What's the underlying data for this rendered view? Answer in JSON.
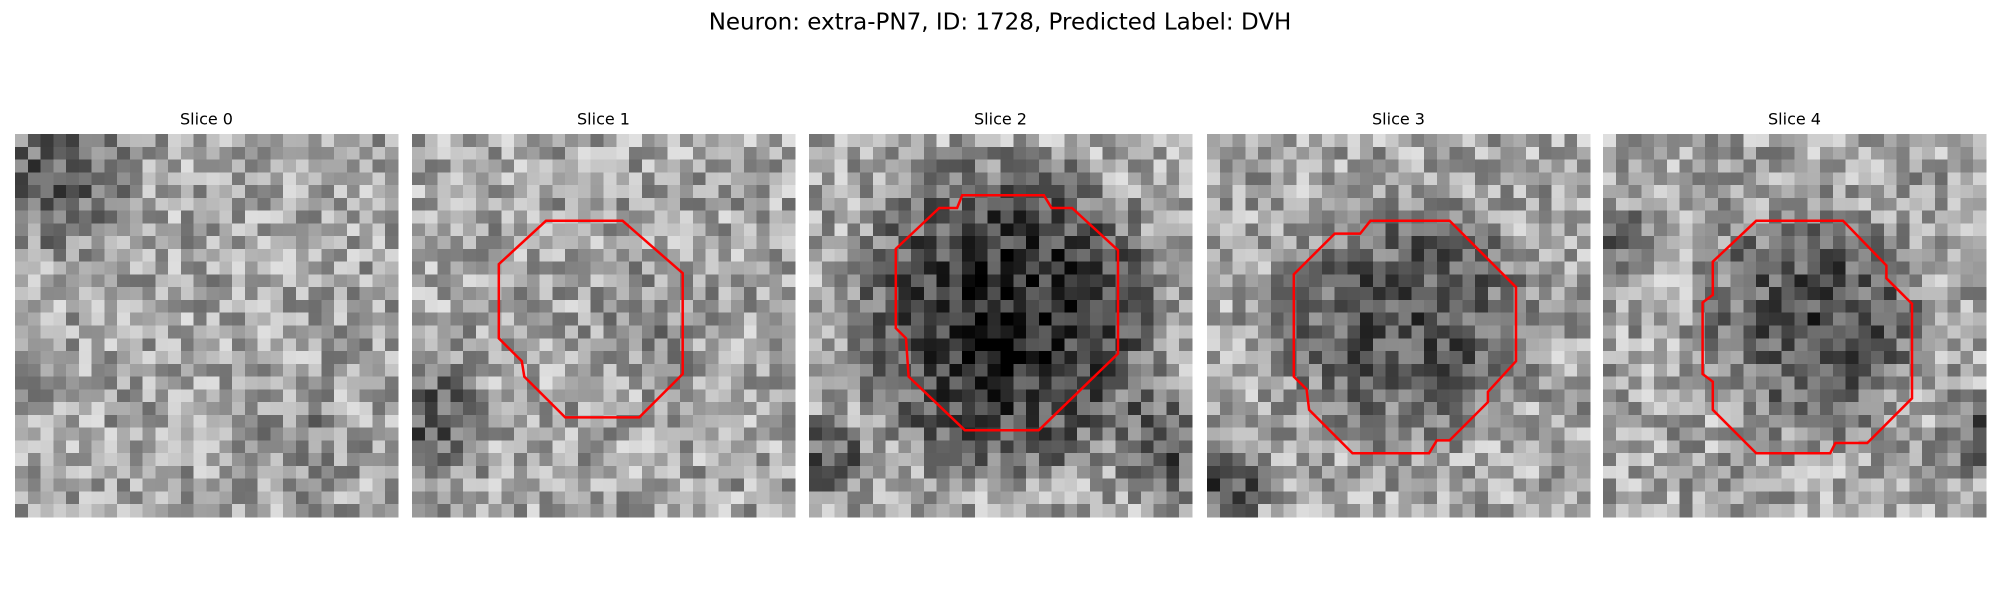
{
  "title": "Neuron: extra-PN7, ID: 1728, Predicted Label: DVH",
  "panels": [
    {
      "title": "Slice 0"
    },
    {
      "title": "Slice 1"
    },
    {
      "title": "Slice 2"
    },
    {
      "title": "Slice 3"
    },
    {
      "title": "Slice 4"
    }
  ]
}
